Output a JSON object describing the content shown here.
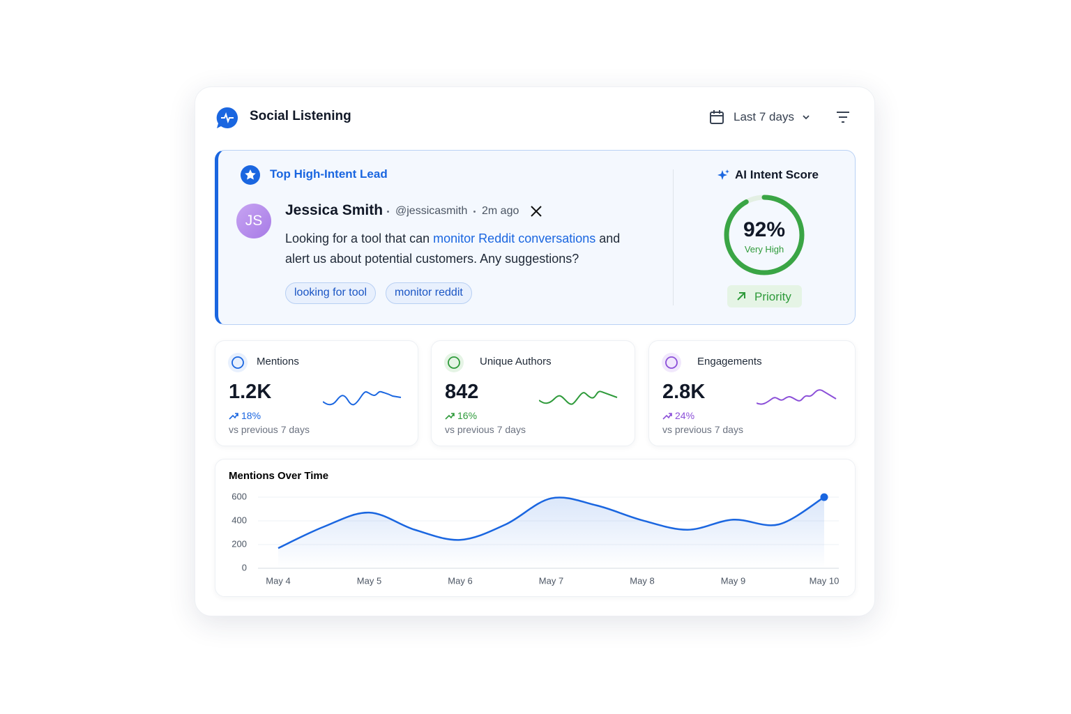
{
  "header": {
    "title": "Social Listening",
    "date_range": "Last 7 days"
  },
  "lead": {
    "badge": "Top High-Intent Lead",
    "initials": "JS",
    "name": "Jessica Smith",
    "handle": "@jessicasmith",
    "time": "2m ago",
    "text_before": "Looking for a tool that can ",
    "text_highlight": "monitor Reddit conversations",
    "text_after": " and alert us about potential customers. Any suggestions?",
    "tags": [
      "looking for tool",
      "monitor reddit"
    ],
    "score_title": "AI Intent Score",
    "score": {
      "value": 92,
      "label": "92%"
    },
    "score_level": "Very High",
    "priority": "Priority"
  },
  "stats": [
    {
      "label": "Mentions",
      "value": "1.2K",
      "change": "18%",
      "period": "vs previous 7 days"
    },
    {
      "label": "Unique Authors",
      "value": "842",
      "change": "16%",
      "period": "vs previous 7 days"
    },
    {
      "label": "Engagements",
      "value": "2.8K",
      "change": "24%",
      "period": "vs previous 7 days"
    }
  ],
  "chart_data": {
    "type": "line",
    "title": "Mentions Over Time",
    "categories": [
      "May 4",
      null,
      "May 5",
      null,
      "May 6",
      null,
      "May 7",
      null,
      "May 8",
      null,
      "May 9",
      null,
      "May 10"
    ],
    "values": [
      170,
      350,
      470,
      325,
      240,
      370,
      590,
      530,
      405,
      325,
      410,
      370,
      600
    ],
    "color": "#1a66e0",
    "ylim": [
      0,
      600
    ],
    "yticks": [
      0,
      200,
      400,
      600
    ],
    "grid": true
  }
}
